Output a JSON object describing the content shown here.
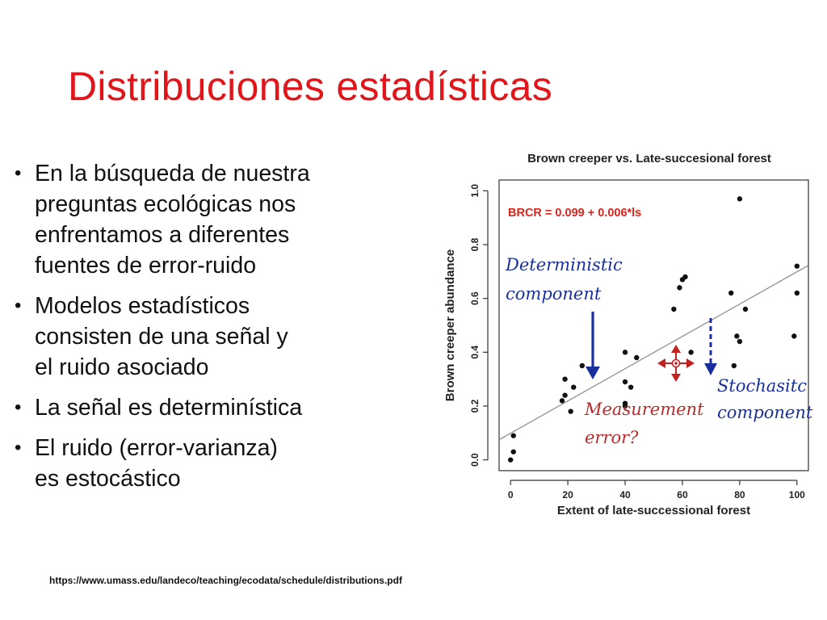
{
  "slide": {
    "title": "Distribuciones estadísticas",
    "bullets": [
      {
        "lines": [
          "En la búsqueda de nuestra",
          "preguntas ecológicas nos",
          "enfrentamos a diferentes",
          "fuentes de error-ruido"
        ]
      },
      {
        "lines": [
          "Modelos estadísticos",
          "consisten de una señal y",
          "el ruido asociado"
        ]
      },
      {
        "lines": [
          "La señal es determinística"
        ]
      },
      {
        "lines": [
          "El ruido (error-varianza)",
          "es estocástico"
        ]
      }
    ],
    "bullet_glyph": "•",
    "source": "https://www.umass.edu/landeco/teaching/ecodata/schedule/distributions.pdf",
    "title_color": "#e0161b"
  },
  "chart_data": {
    "type": "scatter",
    "title": "Brown creeper vs. Late-succesional forest",
    "xlabel": "Extent of late-successional forest",
    "ylabel": "Brown creeper abundance",
    "xlim": [
      0,
      100
    ],
    "ylim": [
      0,
      1.0
    ],
    "xticks": [
      0,
      20,
      40,
      60,
      80,
      100
    ],
    "yticks": [
      0.0,
      0.2,
      0.4,
      0.6,
      0.8,
      1.0
    ],
    "xtick_labels": [
      "0",
      "20",
      "40",
      "60",
      "80",
      "100"
    ],
    "ytick_labels": [
      "0.0",
      "0.2",
      "0.4",
      "0.6",
      "0.8",
      "1.0"
    ],
    "grid": false,
    "equation": "BRCR = 0.099 + 0.006*ls",
    "equation_color": "#d9261c",
    "regression": {
      "intercept": 0.099,
      "slope": 0.006
    },
    "points": [
      {
        "x": 0,
        "y": 0.0
      },
      {
        "x": 1,
        "y": 0.03
      },
      {
        "x": 1,
        "y": 0.09
      },
      {
        "x": 18,
        "y": 0.22
      },
      {
        "x": 19,
        "y": 0.24
      },
      {
        "x": 19,
        "y": 0.3
      },
      {
        "x": 21,
        "y": 0.18
      },
      {
        "x": 22,
        "y": 0.27
      },
      {
        "x": 25,
        "y": 0.35
      },
      {
        "x": 40,
        "y": 0.2
      },
      {
        "x": 40,
        "y": 0.21
      },
      {
        "x": 40,
        "y": 0.29
      },
      {
        "x": 40,
        "y": 0.4
      },
      {
        "x": 42,
        "y": 0.27
      },
      {
        "x": 44,
        "y": 0.38
      },
      {
        "x": 57,
        "y": 0.56
      },
      {
        "x": 59,
        "y": 0.64
      },
      {
        "x": 60,
        "y": 0.67
      },
      {
        "x": 61,
        "y": 0.68
      },
      {
        "x": 63,
        "y": 0.4
      },
      {
        "x": 77,
        "y": 0.62
      },
      {
        "x": 78,
        "y": 0.35
      },
      {
        "x": 79,
        "y": 0.46
      },
      {
        "x": 80,
        "y": 0.97
      },
      {
        "x": 80,
        "y": 0.44
      },
      {
        "x": 82,
        "y": 0.56
      },
      {
        "x": 99,
        "y": 0.46
      },
      {
        "x": 100,
        "y": 0.62
      },
      {
        "x": 100,
        "y": 0.72
      }
    ],
    "annotations": {
      "deterministic": [
        "Deterministic",
        "component"
      ],
      "measurement": [
        "Measurement",
        "error?"
      ],
      "stochastic": [
        "Stochasitc",
        "component"
      ]
    },
    "colors": {
      "blue": "#1a2f9c",
      "red": "#c42020",
      "points": "#111111",
      "line": "#8a8a8a"
    }
  }
}
